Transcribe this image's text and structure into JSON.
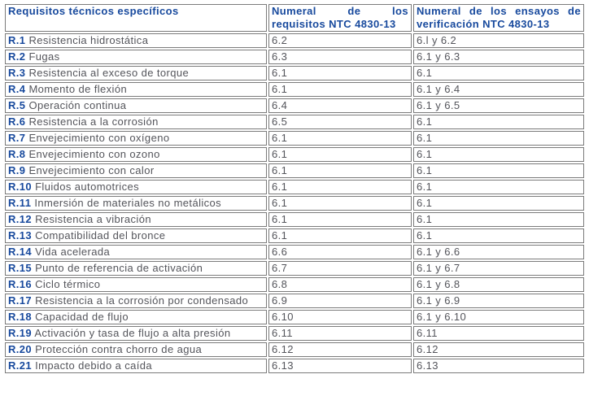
{
  "colors": {
    "accent_blue": "#17499d",
    "body_text": "#54555b",
    "border": "#7b7b7b",
    "background": "#ffffff"
  },
  "table": {
    "columns": [
      {
        "label": "Requisitos técnicos específicos"
      },
      {
        "label": "Numeral de los requisitos NTC 4830-13"
      },
      {
        "label": "Numeral de los ensayos de verificación NTC 4830-13"
      }
    ],
    "rows": [
      {
        "id": "R.1",
        "label": "Resistencia hidrostática",
        "req": "6.2",
        "ver": "6.l y 6.2"
      },
      {
        "id": "R.2",
        "label": "Fugas",
        "req": "6.3",
        "ver": "6.1 y 6.3"
      },
      {
        "id": "R.3",
        "label": "Resistencia al exceso de torque",
        "req": "6.1",
        "ver": "6.1"
      },
      {
        "id": "R.4",
        "label": "Momento de flexión",
        "req": "6.1",
        "ver": "6.1 y 6.4"
      },
      {
        "id": "R.5",
        "label": "Operación continua",
        "req": "6.4",
        "ver": "6.1 y 6.5"
      },
      {
        "id": "R.6",
        "label": "Resistencia a la corrosión",
        "req": "6.5",
        "ver": "6.1"
      },
      {
        "id": "R.7",
        "label": "Envejecimiento con oxígeno",
        "req": "6.1",
        "ver": "6.1"
      },
      {
        "id": "R.8",
        "label": "Envejecimiento con ozono",
        "req": "6.1",
        "ver": "6.1"
      },
      {
        "id": "R.9",
        "label": "Envejecimiento con calor",
        "req": "6.1",
        "ver": "6.1"
      },
      {
        "id": "R.10",
        "label": "Fluidos automotrices",
        "req": "6.1",
        "ver": "6.1"
      },
      {
        "id": "R.11",
        "label": "Inmersión de materiales no metálicos",
        "req": "6.1",
        "ver": "6.1"
      },
      {
        "id": "R.12",
        "label": "Resistencia a vibración",
        "req": "6.1",
        "ver": "6.1"
      },
      {
        "id": "R.13",
        "label": "Compatibilidad del bronce",
        "req": "6.1",
        "ver": "6.1"
      },
      {
        "id": "R.14",
        "label": "Vida acelerada",
        "req": "6.6",
        "ver": "6.1 y 6.6"
      },
      {
        "id": "R.15",
        "label": "Punto de referencia de activación",
        "req": "6.7",
        "ver": "6.1 y 6.7"
      },
      {
        "id": "R.16",
        "label": "Ciclo térmico",
        "req": "6.8",
        "ver": "6.1 y 6.8"
      },
      {
        "id": "R.17",
        "label": "Resistencia a la corrosión por condensado",
        "req": "6.9",
        "ver": "6.1 y 6.9"
      },
      {
        "id": "R.18",
        "label": "Capacidad de flujo",
        "req": "6.10",
        "ver": "6.1 y 6.10"
      },
      {
        "id": "R.19",
        "label": "Activación y tasa de flujo a alta presión",
        "req": "6.11",
        "ver": "6.11"
      },
      {
        "id": "R.20",
        "label": "Protección contra chorro de agua",
        "req": "6.12",
        "ver": "6.12"
      },
      {
        "id": "R.21",
        "label": "Impacto debido a caída",
        "req": "6.13",
        "ver": "6.13"
      }
    ]
  }
}
